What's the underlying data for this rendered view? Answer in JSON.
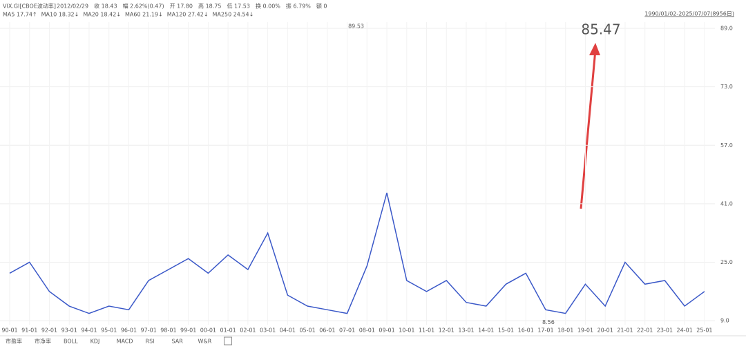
{
  "header": {
    "symbol": "VIX.GI[CBOE波动率]",
    "fields": [
      "2012/02/29",
      "收 18.43",
      "幅 2.62%(0.47)",
      "开 17.80",
      "高 18.75",
      "低 17.53",
      "换 0.00%",
      "振 6.79%",
      "额 0"
    ],
    "ma": [
      "MA5 17.74↑",
      "MA10 18.32↓",
      "MA20 18.42↓",
      "MA60 21.19↓",
      "MA120 27.42↓",
      "MA250 24.54↓"
    ],
    "range": "1990/01/02-2025/07/07(8956日)"
  },
  "chart_data": {
    "type": "line",
    "categories": [
      "90-01",
      "91-01",
      "92-01",
      "93-01",
      "94-01",
      "95-01",
      "96-01",
      "97-01",
      "98-01",
      "99-01",
      "00-01",
      "01-01",
      "02-01",
      "03-01",
      "04-01",
      "05-01",
      "06-01",
      "07-01",
      "08-01",
      "09-01",
      "10-01",
      "11-01",
      "12-01",
      "13-01",
      "14-01",
      "15-01",
      "16-01",
      "17-01",
      "18-01",
      "19-01",
      "20-01",
      "21-01",
      "22-01",
      "23-01",
      "24-01",
      "25-01"
    ],
    "values": [
      22,
      25,
      17,
      13,
      11,
      13,
      12,
      20,
      23,
      26,
      22,
      27,
      23,
      33,
      16,
      13,
      12,
      11,
      24,
      44,
      20,
      17,
      20,
      14,
      13,
      19,
      22,
      12,
      11,
      19,
      13,
      25,
      19,
      20,
      13,
      17
    ],
    "color": "#3a58c8",
    "ylim": [
      7.9,
      90.7
    ],
    "yticks": [
      {
        "value": 9,
        "label": "9.0"
      },
      {
        "value": 25,
        "label": "25.0"
      },
      {
        "value": 41,
        "label": "41.0"
      },
      {
        "value": 57,
        "label": "57.0"
      },
      {
        "value": 73,
        "label": "73.0"
      },
      {
        "value": 89,
        "label": "89.0"
      }
    ],
    "grid": true,
    "annotations": [
      89.53,
      85.47,
      8.56
    ]
  },
  "tabs": [
    "市盈率",
    "市净率",
    "BOLL",
    "KDJ",
    "MACD",
    "RSI",
    "SAR",
    "W&R"
  ]
}
